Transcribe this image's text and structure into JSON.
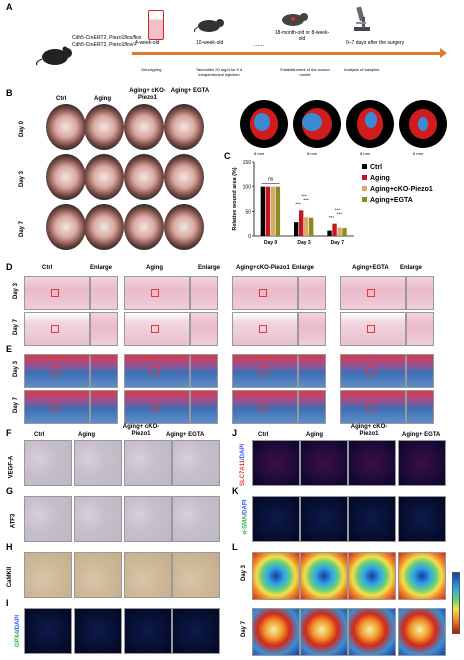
{
  "panel_letters": {
    "a": "A",
    "b": "B",
    "c": "C",
    "d": "D",
    "e": "E",
    "f": "F",
    "g": "G",
    "h": "H",
    "i": "I",
    "j": "J",
    "k": "K",
    "l": "L"
  },
  "panelA": {
    "genotypes": [
      "Cdh5-CreERT2, Piezo1flox/flox",
      "Cdh5-CreERT2, Piezo1flox/+"
    ],
    "steps": [
      "4-week-old",
      "10-week-old",
      "18-month-old or 8-week-old",
      "0–7 days after the surgery"
    ],
    "below": [
      "Genotyping",
      "Tamoxifen 20 mg/d for 5 d intraperitoneal injection",
      "Establishment of the wound model",
      "Analysis of samples"
    ],
    "dots": "......"
  },
  "groups": [
    "Ctrl",
    "Aging",
    "Aging+ cKO-Piezo1",
    "Aging+ EGTA"
  ],
  "panelB": {
    "days": [
      "Day 0",
      "Day 3",
      "Day 7"
    ]
  },
  "schematic": {
    "scale": [
      "8 mm",
      "8 mm",
      "8 mm",
      "8 mm"
    ]
  },
  "panelDE": {
    "headers": [
      "Ctrl",
      "Enlarge",
      "Aging",
      "Enlarge",
      "Aging+cKO-Piezo1",
      "Enlarge",
      "Aging+EGTA",
      "Enlarge"
    ],
    "days": [
      "Day 3",
      "Day 7"
    ]
  },
  "markers": {
    "f": "VEGF-A",
    "g": "ATF3",
    "h": "CaMKII",
    "i_green": "GPX4",
    "i_blue": "/DAPI",
    "j_red": "SLC7A11",
    "j_blue": "/DAPI",
    "k_green": "α-SMA",
    "k_blue": "/DAPI"
  },
  "panelL": {
    "days": [
      "Day 3",
      "Day 7"
    ]
  },
  "chart_data": {
    "type": "bar",
    "ylabel": "Relative wound area (%)",
    "categories": [
      "Day 0",
      "Day 3",
      "Day 7"
    ],
    "ylim": [
      0,
      150
    ],
    "yticks": [
      "0",
      "50",
      "100",
      "150"
    ],
    "series": [
      {
        "name": "Ctrl",
        "color": "#000000",
        "values": [
          100,
          28,
          11
        ]
      },
      {
        "name": "Aging",
        "color": "#c4161c",
        "values": [
          100,
          52,
          25
        ]
      },
      {
        "name": "Aging+cKO-Piezo1",
        "color": "#d9a96a",
        "values": [
          100,
          38,
          17
        ]
      },
      {
        "name": "Aging+EGTA",
        "color": "#8a8c1e",
        "values": [
          100,
          37,
          16
        ]
      }
    ],
    "annotations": [
      "ns",
      "***",
      "***",
      "***",
      "***",
      "***",
      "***"
    ],
    "legend": "right"
  }
}
